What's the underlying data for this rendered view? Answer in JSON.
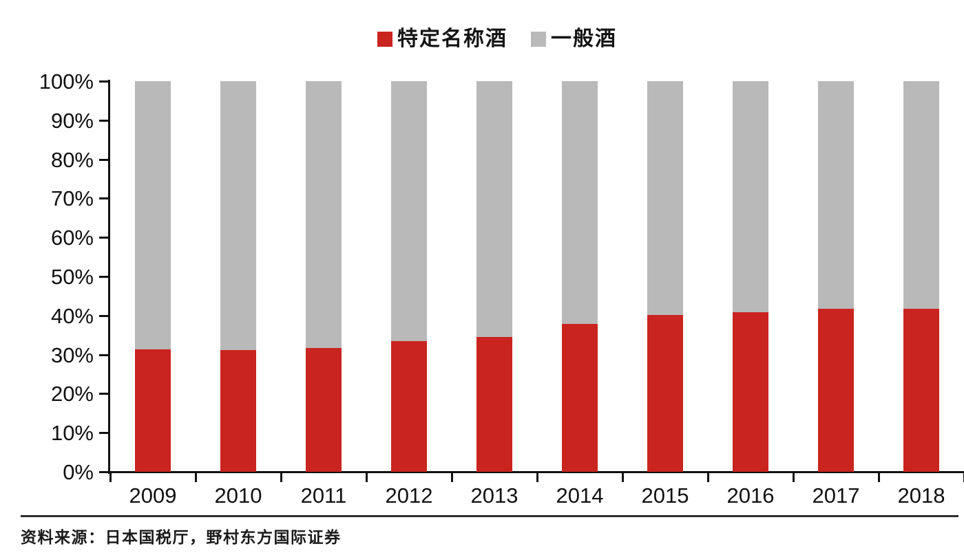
{
  "chart_data": {
    "type": "bar",
    "stacked": true,
    "stack_mode": "percent",
    "title": "",
    "xlabel": "",
    "ylabel": "",
    "grid": false,
    "legend_position": "top",
    "categories": [
      "2009",
      "2010",
      "2011",
      "2012",
      "2013",
      "2014",
      "2015",
      "2016",
      "2017",
      "2018"
    ],
    "series": [
      {
        "name": "特定名称酒",
        "color": "#c9241f",
        "values": [
          31.4,
          31.1,
          31.7,
          33.5,
          34.5,
          37.8,
          40.2,
          40.8,
          41.7,
          41.8
        ]
      },
      {
        "name": "一般酒",
        "color": "#b9b9b9",
        "values": [
          68.6,
          68.9,
          68.3,
          66.5,
          65.5,
          62.2,
          59.8,
          59.2,
          58.3,
          58.2
        ]
      }
    ],
    "y_axis": {
      "min": 0,
      "max": 100,
      "tick_values": [
        0,
        10,
        20,
        30,
        40,
        50,
        60,
        70,
        80,
        90,
        100
      ],
      "tick_labels": [
        "0%",
        "10%",
        "20%",
        "30%",
        "40%",
        "50%",
        "60%",
        "70%",
        "80%",
        "90%",
        "100%"
      ]
    }
  },
  "footer": {
    "source_text": "资料来源：日本国税厅，野村东方国际证券"
  },
  "colors": {
    "axis": "#111111",
    "text": "#111111",
    "series_red": "#c9241f",
    "series_gray": "#b9b9b9"
  }
}
